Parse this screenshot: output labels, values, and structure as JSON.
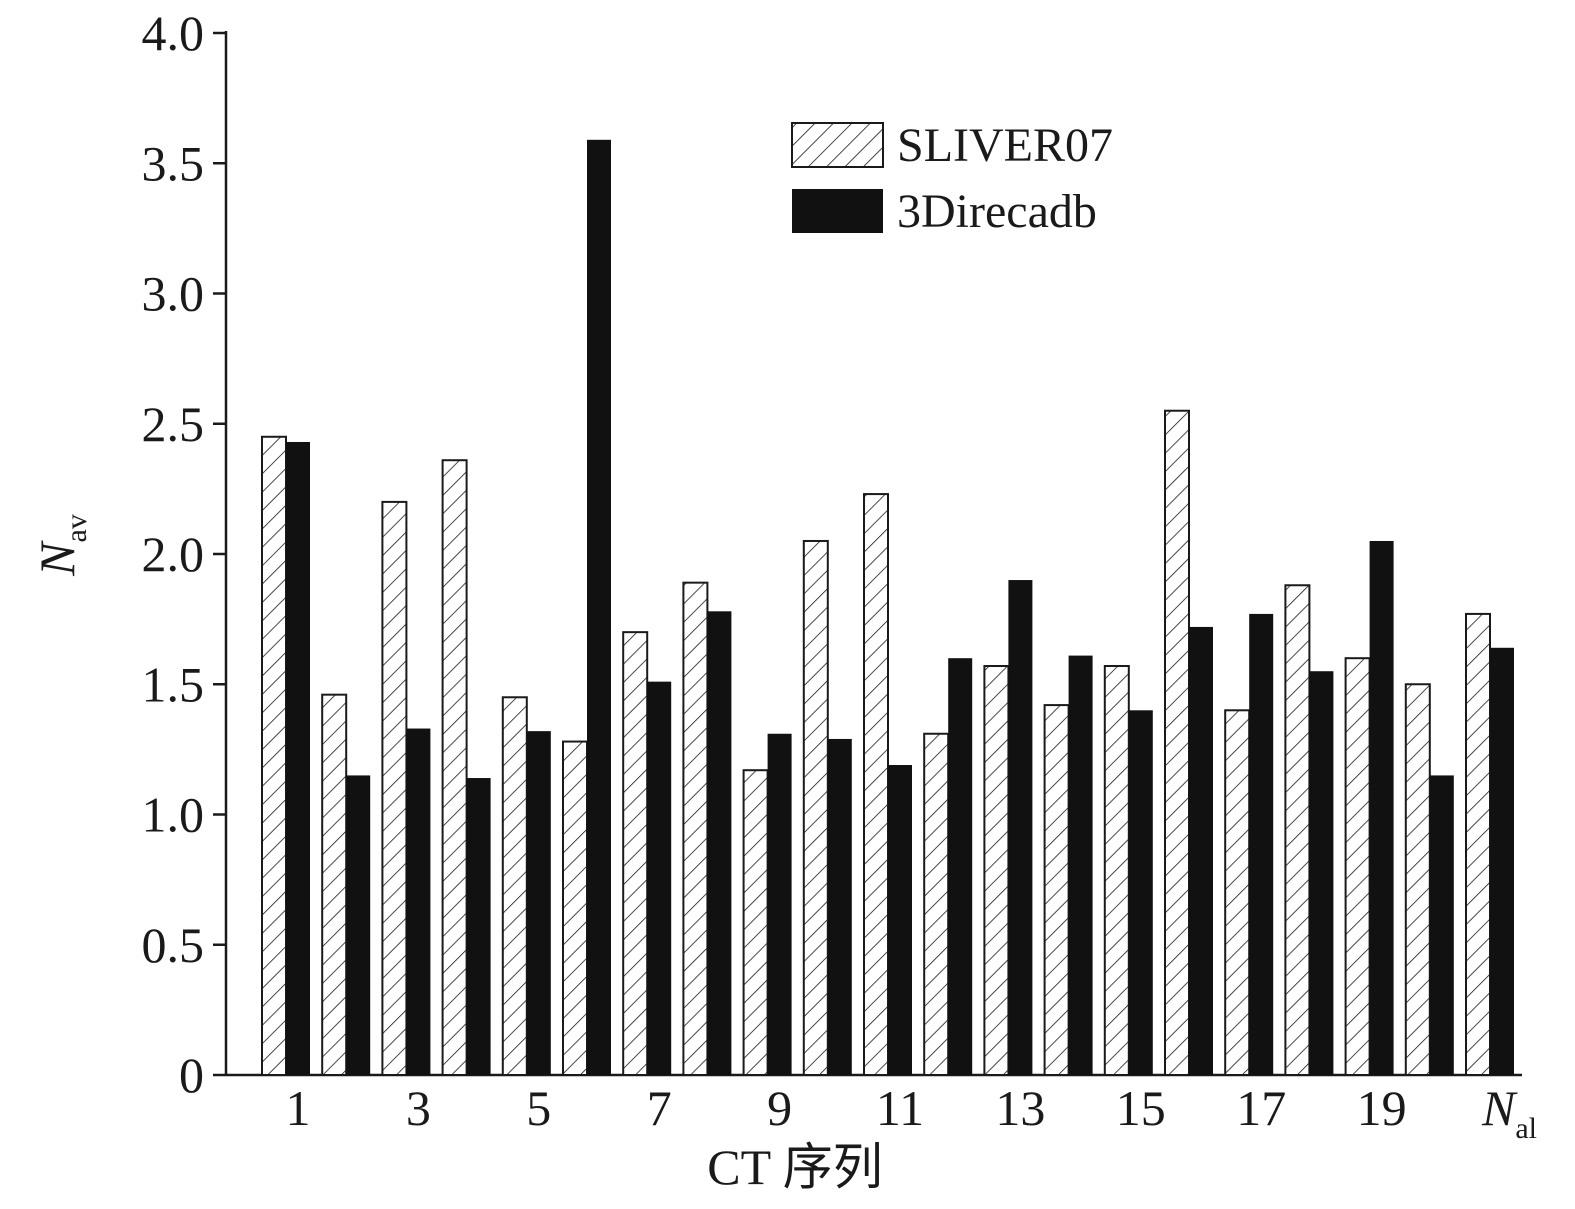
{
  "chart_data": {
    "type": "bar",
    "title": "",
    "xlabel": "CT 序列",
    "ylabel": {
      "main": "N",
      "sub": "av"
    },
    "ylim": [
      0,
      4.0
    ],
    "yticks": [
      "0",
      "0.5",
      "1.0",
      "1.5",
      "2.0",
      "2.5",
      "3.0",
      "3.5",
      "4.0"
    ],
    "categories": [
      "1",
      "2",
      "3",
      "4",
      "5",
      "6",
      "7",
      "8",
      "9",
      "10",
      "11",
      "12",
      "13",
      "14",
      "15",
      "16",
      "17",
      "18",
      "19",
      "20",
      "Nal"
    ],
    "x_tick_labels": [
      {
        "category_index": 0,
        "text": "1"
      },
      {
        "category_index": 2,
        "text": "3"
      },
      {
        "category_index": 4,
        "text": "5"
      },
      {
        "category_index": 6,
        "text": "7"
      },
      {
        "category_index": 8,
        "text": "9"
      },
      {
        "category_index": 10,
        "text": "11"
      },
      {
        "category_index": 12,
        "text": "13"
      },
      {
        "category_index": 14,
        "text": "15"
      },
      {
        "category_index": 16,
        "text": "17"
      },
      {
        "category_index": 18,
        "text": "19"
      },
      {
        "category_index": 20,
        "text": "N",
        "sub": "al",
        "italic": true
      }
    ],
    "series": [
      {
        "name": "SLIVER07",
        "style": "hatched",
        "values": [
          2.45,
          1.46,
          2.2,
          2.36,
          1.45,
          1.28,
          1.7,
          1.89,
          1.17,
          2.05,
          2.23,
          1.31,
          1.57,
          1.42,
          1.57,
          2.55,
          1.4,
          1.88,
          1.6,
          1.5,
          1.77
        ]
      },
      {
        "name": "3Direcadb",
        "style": "solid",
        "values": [
          2.43,
          1.15,
          1.33,
          1.14,
          1.32,
          3.59,
          1.51,
          1.78,
          1.31,
          1.29,
          1.19,
          1.6,
          1.9,
          1.61,
          1.4,
          1.72,
          1.77,
          1.55,
          2.05,
          1.15,
          1.64
        ]
      }
    ],
    "legend_position": "top-right",
    "grid": false,
    "colors": {
      "solid": "#111111",
      "hatch": "#1a1a1a",
      "background": "#ffffff"
    }
  }
}
